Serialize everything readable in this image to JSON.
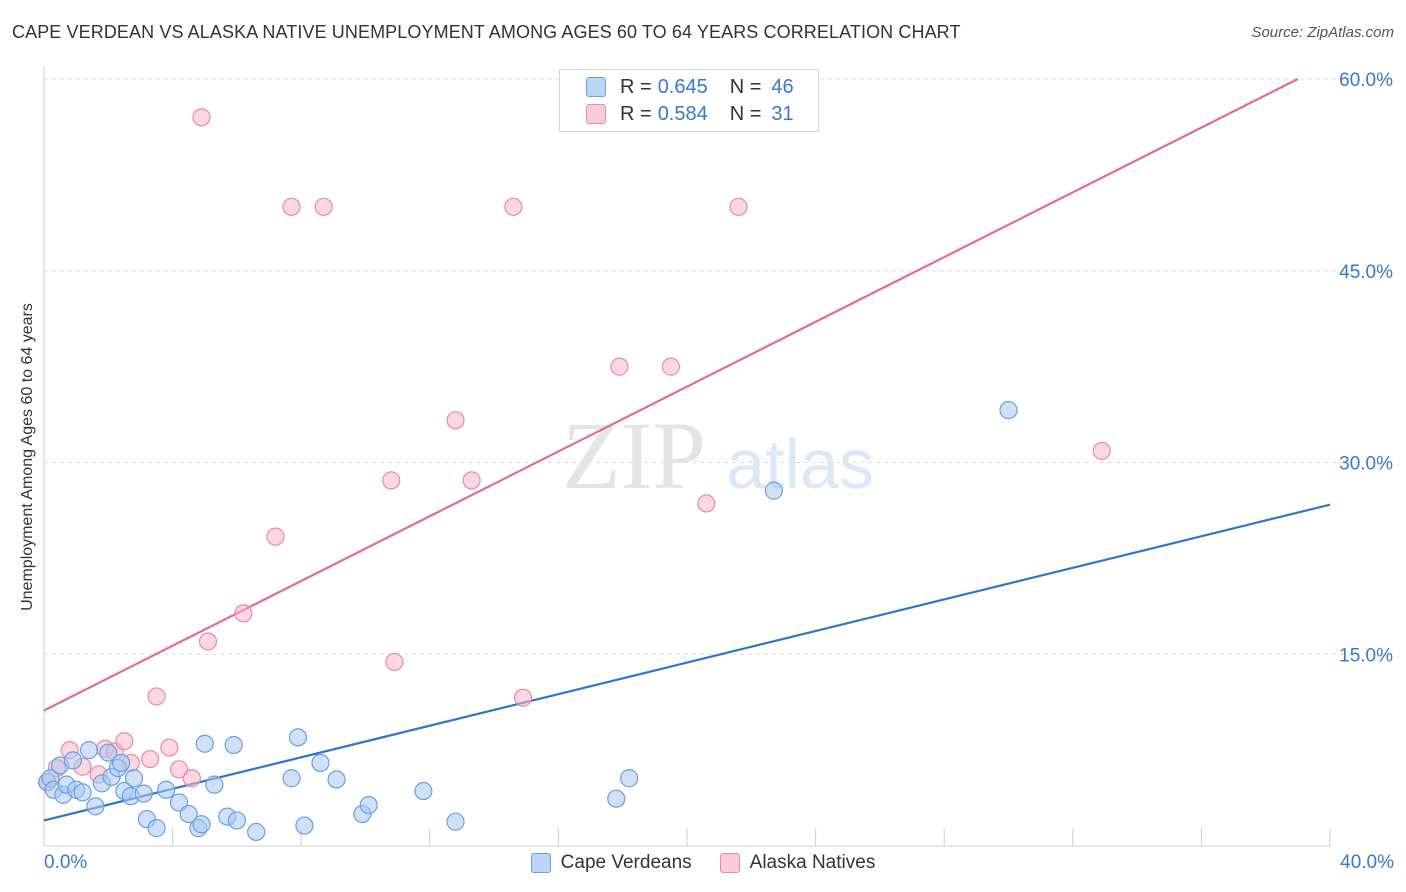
{
  "header": {
    "title": "CAPE VERDEAN VS ALASKA NATIVE UNEMPLOYMENT AMONG AGES 60 TO 64 YEARS CORRELATION CHART",
    "source": "Source: ZipAtlas.com"
  },
  "watermark": {
    "zip": "ZIP",
    "atlas": "atlas"
  },
  "legend_top": {
    "rows": [
      {
        "r_label": "R =",
        "r_value": "0.645",
        "n_label": "N =",
        "n_value": "46",
        "color": "#a9c8f0"
      },
      {
        "r_label": "R =",
        "r_value": "0.584",
        "n_label": "N =",
        "n_value": "31",
        "color": "#f5b7c9"
      }
    ]
  },
  "legend_bottom": [
    {
      "label": "Cape Verdeans",
      "color": "#a9c8f0"
    },
    {
      "label": "Alaska Natives",
      "color": "#f5b7c9"
    }
  ],
  "colors": {
    "blue_fill": "#a9c8f0",
    "blue_stroke": "#6a9fe0",
    "blue_line": "#2f74cf",
    "pink_fill": "#f5b7c9",
    "pink_stroke": "#e88aa7",
    "pink_line": "#e36d92",
    "tick_text": "#3a78d0",
    "grid": "#dddddd"
  },
  "chart_data": {
    "type": "scatter",
    "title": "CAPE VERDEAN VS ALASKA NATIVE UNEMPLOYMENT AMONG AGES 60 TO 64 YEARS CORRELATION CHART",
    "xlabel": "",
    "ylabel": "Unemployment Among Ages 60 to 64 years",
    "xlim": [
      0,
      40
    ],
    "ylim": [
      0,
      60
    ],
    "x_tick_labels": [
      "0.0%",
      "40.0%"
    ],
    "y_ticks": [
      15,
      30,
      45,
      60
    ],
    "y_tick_labels": [
      "15.0%",
      "30.0%",
      "45.0%",
      "60.0%"
    ],
    "series": [
      {
        "name": "Cape Verdeans",
        "points": [
          [
            0.1,
            5.0
          ],
          [
            0.2,
            5.3
          ],
          [
            0.3,
            4.4
          ],
          [
            0.5,
            6.3
          ],
          [
            0.6,
            4.0
          ],
          [
            0.7,
            4.8
          ],
          [
            0.9,
            6.7
          ],
          [
            1.0,
            4.4
          ],
          [
            1.2,
            4.2
          ],
          [
            1.4,
            7.5
          ],
          [
            1.6,
            3.1
          ],
          [
            1.8,
            4.9
          ],
          [
            2.0,
            7.3
          ],
          [
            2.1,
            5.4
          ],
          [
            2.3,
            6.1
          ],
          [
            2.4,
            6.5
          ],
          [
            2.5,
            4.3
          ],
          [
            2.7,
            3.9
          ],
          [
            2.8,
            5.3
          ],
          [
            3.1,
            4.1
          ],
          [
            3.2,
            2.1
          ],
          [
            3.5,
            1.4
          ],
          [
            3.8,
            4.4
          ],
          [
            4.2,
            3.4
          ],
          [
            4.5,
            2.5
          ],
          [
            4.8,
            1.4
          ],
          [
            4.9,
            1.7
          ],
          [
            5.0,
            8.0
          ],
          [
            5.3,
            4.8
          ],
          [
            5.7,
            2.3
          ],
          [
            5.9,
            7.9
          ],
          [
            6.0,
            2.0
          ],
          [
            6.6,
            1.1
          ],
          [
            7.7,
            5.3
          ],
          [
            7.9,
            8.5
          ],
          [
            8.1,
            1.6
          ],
          [
            8.6,
            6.5
          ],
          [
            9.1,
            5.2
          ],
          [
            9.9,
            2.5
          ],
          [
            10.1,
            3.2
          ],
          [
            11.8,
            4.3
          ],
          [
            12.8,
            1.9
          ],
          [
            17.8,
            3.7
          ],
          [
            18.2,
            5.3
          ],
          [
            22.7,
            27.8
          ],
          [
            30.0,
            34.1
          ]
        ]
      },
      {
        "name": "Alaska Natives",
        "points": [
          [
            0.1,
            5.0
          ],
          [
            0.4,
            6.1
          ],
          [
            0.8,
            7.5
          ],
          [
            1.2,
            6.2
          ],
          [
            1.7,
            5.6
          ],
          [
            1.9,
            7.6
          ],
          [
            2.2,
            7.4
          ],
          [
            2.5,
            8.2
          ],
          [
            2.7,
            6.5
          ],
          [
            3.3,
            6.8
          ],
          [
            3.5,
            11.7
          ],
          [
            3.9,
            7.7
          ],
          [
            4.2,
            6.0
          ],
          [
            4.6,
            5.3
          ],
          [
            4.9,
            57.0
          ],
          [
            5.1,
            16.0
          ],
          [
            6.2,
            18.2
          ],
          [
            7.2,
            24.2
          ],
          [
            7.7,
            50.0
          ],
          [
            8.7,
            50.0
          ],
          [
            10.8,
            28.6
          ],
          [
            10.9,
            14.4
          ],
          [
            12.8,
            33.3
          ],
          [
            13.3,
            28.6
          ],
          [
            14.6,
            50.0
          ],
          [
            14.9,
            11.6
          ],
          [
            17.9,
            37.5
          ],
          [
            19.5,
            37.5
          ],
          [
            20.6,
            26.8
          ],
          [
            21.6,
            50.0
          ],
          [
            32.9,
            30.9
          ]
        ]
      }
    ],
    "trend_lines": [
      {
        "name": "Cape Verdeans",
        "x": [
          0,
          40
        ],
        "y": [
          2.0,
          26.7
        ]
      },
      {
        "name": "Alaska Natives",
        "x": [
          0,
          39
        ],
        "y": [
          10.6,
          60.0
        ]
      }
    ]
  }
}
